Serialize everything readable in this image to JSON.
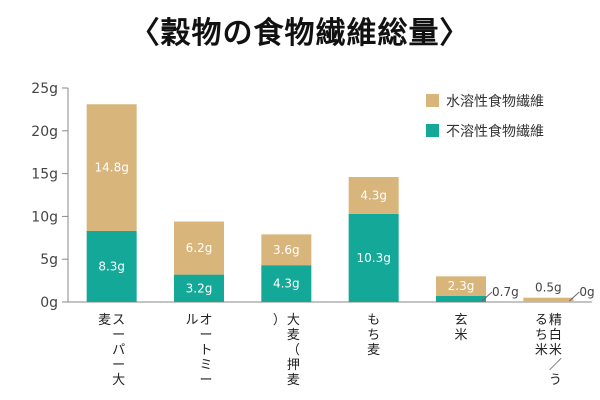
{
  "title": "〈穀物の食物繊維総量〉",
  "colors": {
    "soluble": "#D8B57A",
    "insoluble": "#13A898",
    "axis": "#888888",
    "grid": "#dddddd"
  },
  "chart_data": {
    "type": "bar",
    "stacked": true,
    "unit": "g",
    "ylim": [
      0,
      25
    ],
    "yticks": [
      "0g",
      "5g",
      "10g",
      "15g",
      "20g",
      "25g"
    ],
    "categories": [
      "スーパー大麦",
      "オートミール",
      "大麦（押麦）",
      "もち麦",
      "玄米",
      "精白米／うるち米"
    ],
    "series": [
      {
        "name": "不溶性食物繊維",
        "values": [
          8.3,
          3.2,
          4.3,
          10.3,
          0.7,
          0
        ],
        "labels": [
          "8.3g",
          "3.2g",
          "4.3g",
          "10.3g",
          "0.7g",
          "0g"
        ]
      },
      {
        "name": "水溶性食物繊維",
        "values": [
          14.8,
          6.2,
          3.6,
          4.3,
          2.3,
          0.5
        ],
        "labels": [
          "14.8g",
          "6.2g",
          "3.6g",
          "4.3g",
          "2.3g",
          "0.5g"
        ]
      }
    ],
    "legend": "top-right",
    "grid": false
  }
}
